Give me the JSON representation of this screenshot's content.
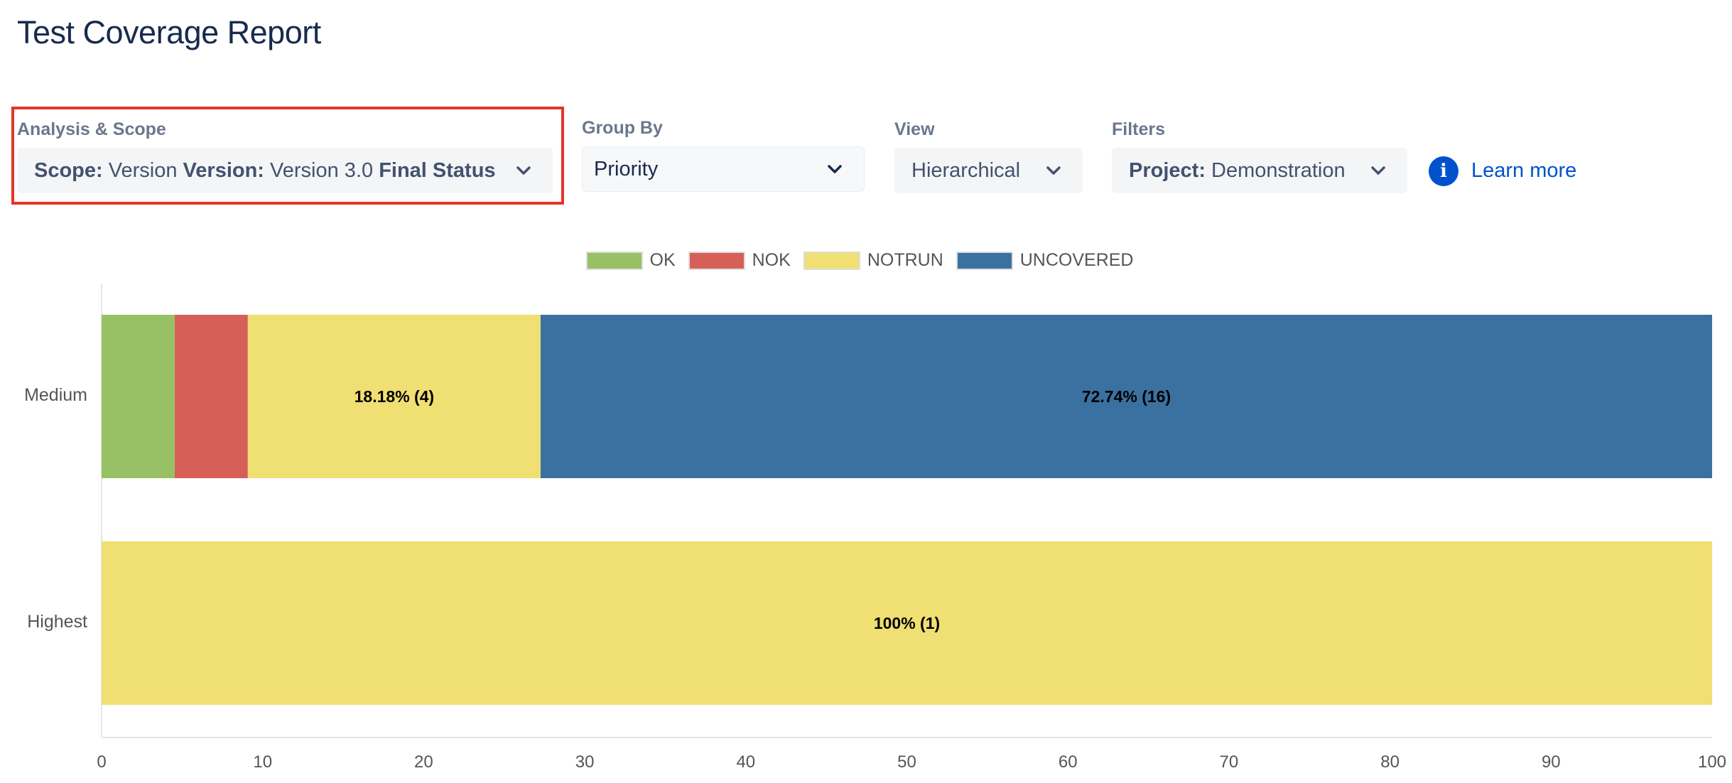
{
  "page": {
    "title": "Test Coverage Report"
  },
  "controls": {
    "analysis": {
      "label": "Analysis & Scope",
      "scope_key": "Scope:",
      "scope_value": " Version ",
      "version_key": "Version:",
      "version_value": " Version 3.0 ",
      "status_key": "Final Status"
    },
    "group_by": {
      "label": "Group By",
      "value": "Priority"
    },
    "view": {
      "label": "View",
      "value": "Hierarchical"
    },
    "filters": {
      "label": "Filters",
      "key": "Project:",
      "value": " Demonstration"
    },
    "info_glyph": "i",
    "learn_more": "Learn more"
  },
  "colors": {
    "OK": "#98C065",
    "NOK": "#D65F57",
    "NOTRUN": "#F0DF72",
    "UNCOVERED": "#3B71A0",
    "highlight": "#E5342A",
    "link": "#0052CC"
  },
  "icons": [
    "chevron-down-icon",
    "info-icon"
  ],
  "chart_data": {
    "type": "bar",
    "orientation": "horizontal",
    "stacked": true,
    "categories": [
      "Medium",
      "Highest"
    ],
    "series": [
      {
        "name": "OK",
        "values": [
          4.54,
          0
        ]
      },
      {
        "name": "NOK",
        "values": [
          4.54,
          0
        ]
      },
      {
        "name": "NOTRUN",
        "values": [
          18.18,
          100
        ]
      },
      {
        "name": "UNCOVERED",
        "values": [
          72.74,
          0
        ]
      }
    ],
    "data_labels": [
      [
        "",
        "",
        "18.18% (4)",
        "72.74% (16)"
      ],
      [
        "",
        "",
        "100% (1)",
        ""
      ]
    ],
    "xlim": [
      0,
      100
    ],
    "xticks": [
      0,
      10,
      20,
      30,
      40,
      50,
      60,
      70,
      80,
      90,
      100
    ],
    "legend_position": "top-center",
    "grid": false,
    "xlabel": "",
    "ylabel": ""
  }
}
